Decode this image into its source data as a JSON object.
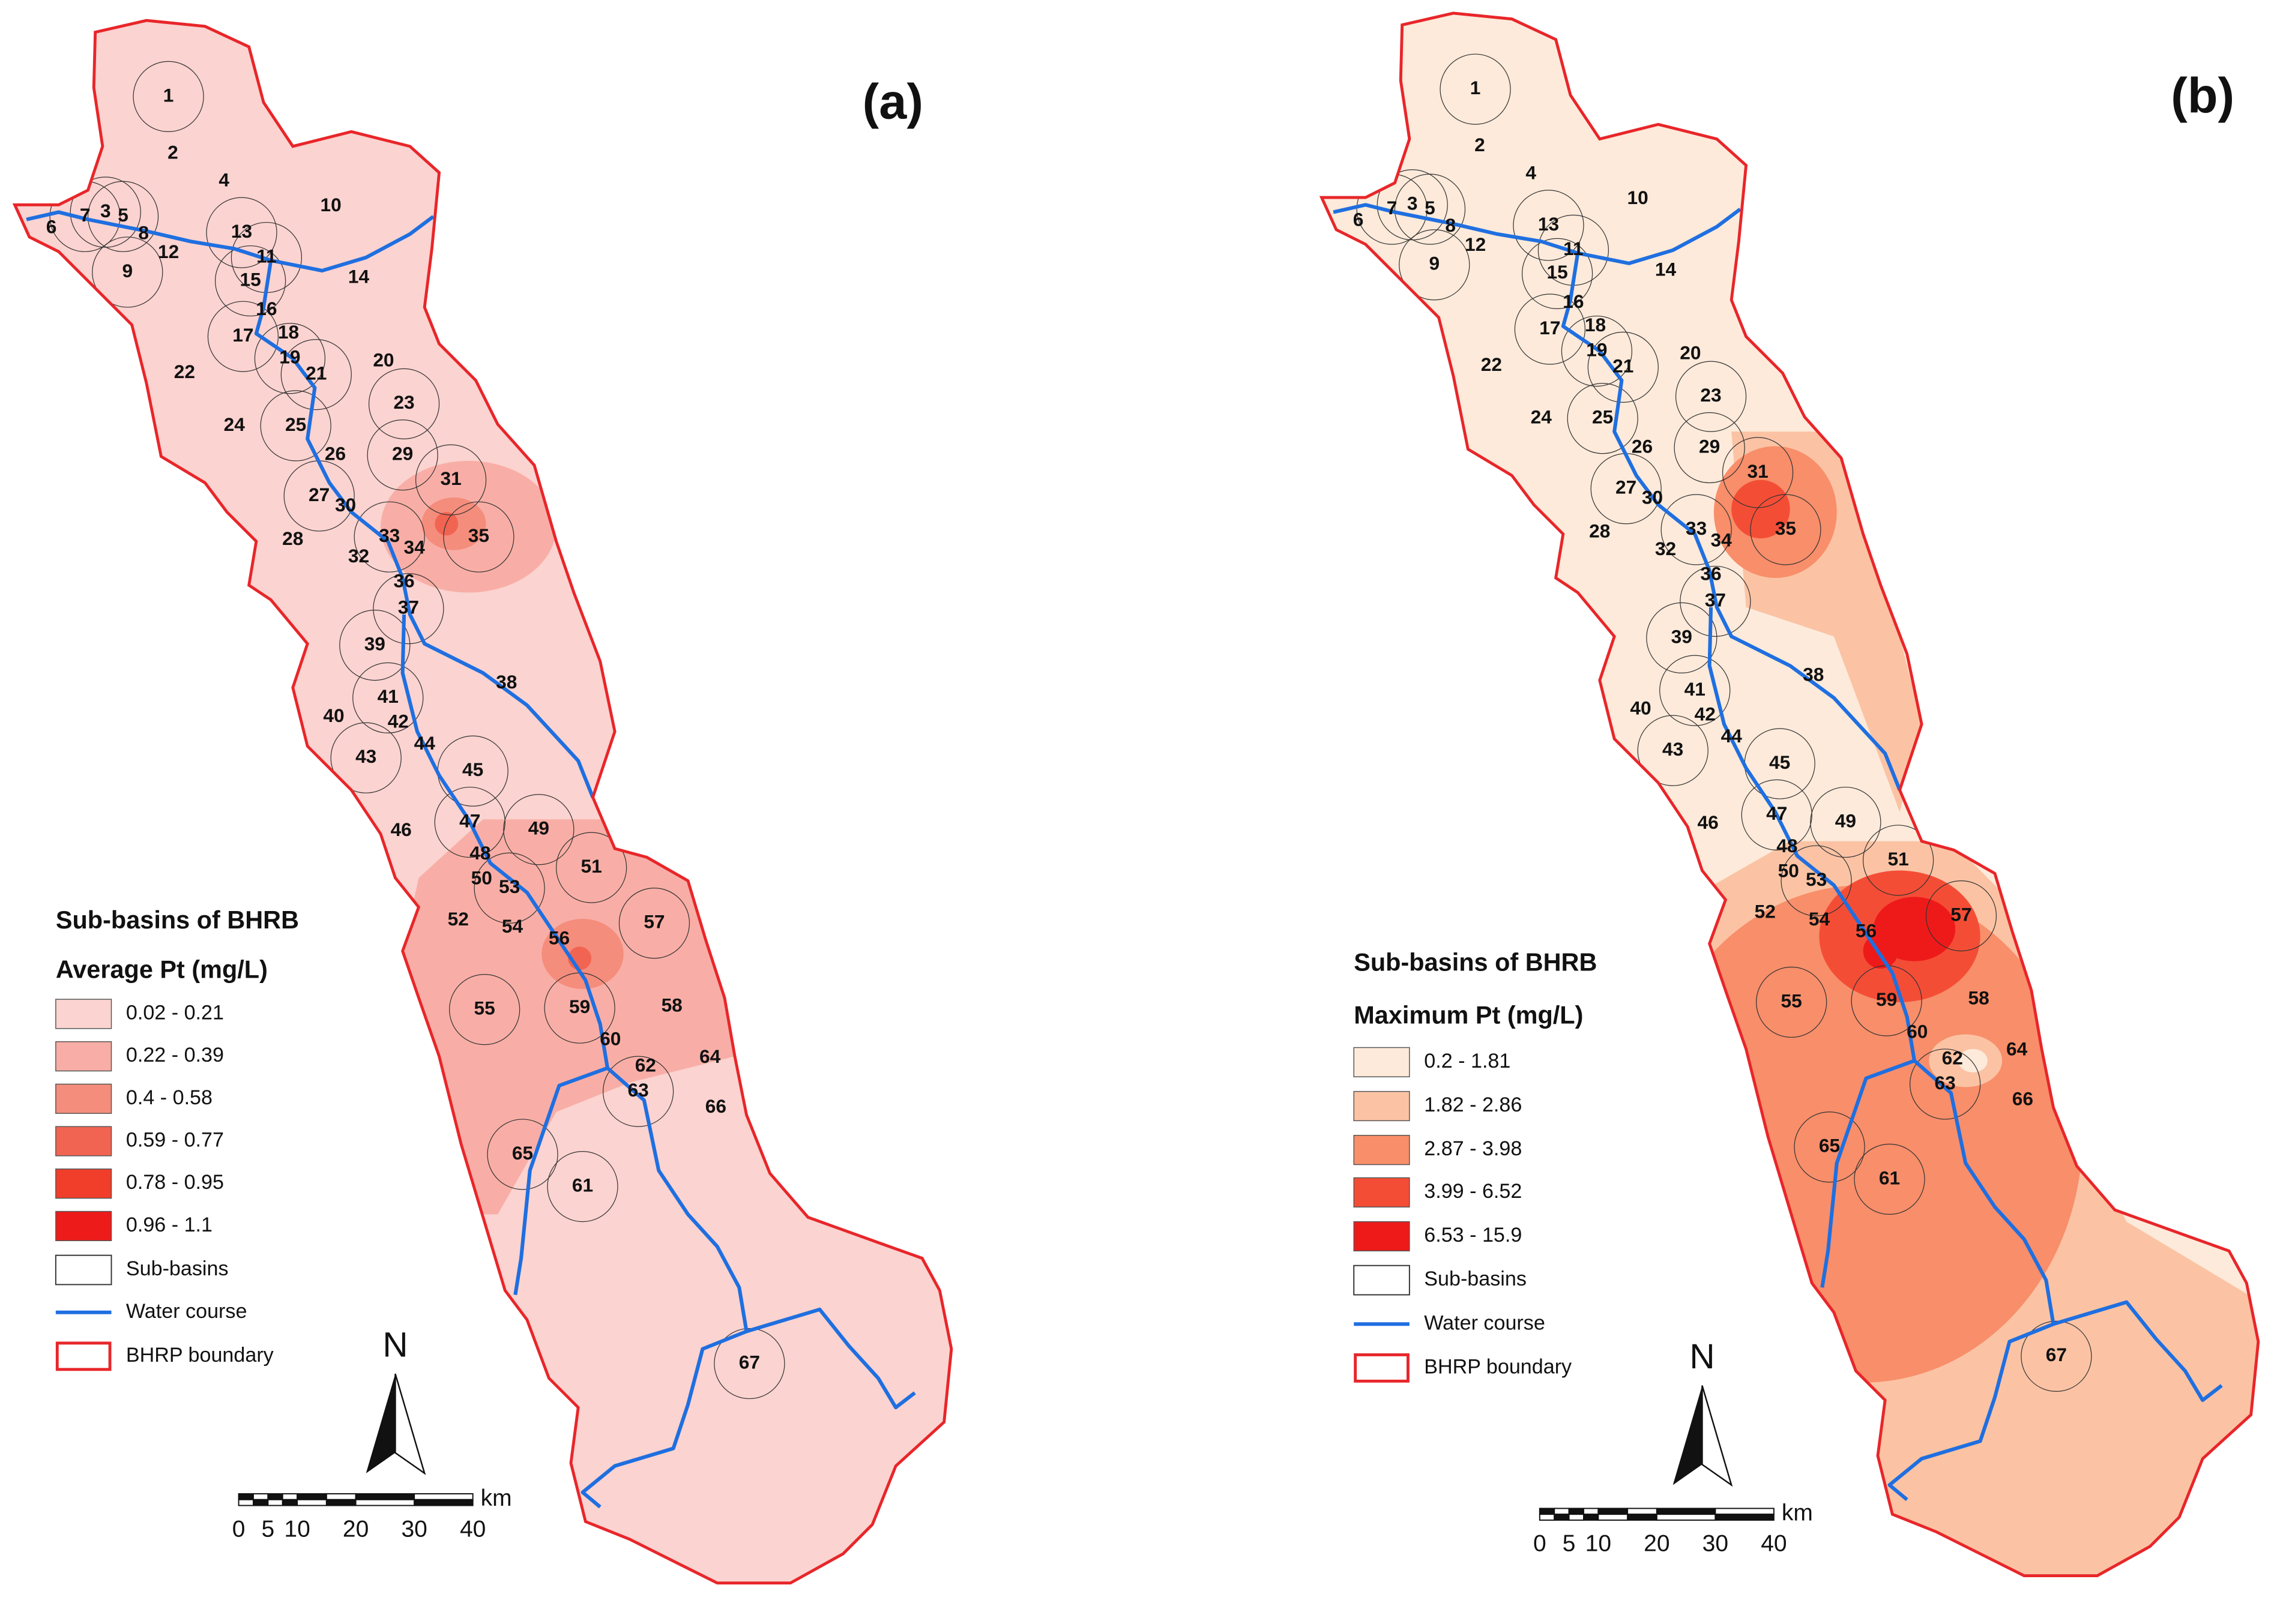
{
  "panels": [
    {
      "label": "(a)",
      "legend": {
        "title": "Sub-basins of BHRB",
        "subtitle": "Average Pt (mg/L)",
        "classes": [
          {
            "label": "0.02 - 0.21",
            "color": "#fbd3d0"
          },
          {
            "label": "0.22 - 0.39",
            "color": "#f8aea6"
          },
          {
            "label": "0.4 - 0.58",
            "color": "#f58d7c"
          },
          {
            "label": "0.59 - 0.77",
            "color": "#f26452"
          },
          {
            "label": "0.78 - 0.95",
            "color": "#f03e2b"
          },
          {
            "label": "0.96 - 1.1",
            "color": "#ee1b1b"
          }
        ],
        "items": [
          "Sub-basins",
          "Water course",
          "BHRP boundary"
        ]
      },
      "north": "N",
      "scale": {
        "ticks": [
          0,
          5,
          10,
          20,
          30,
          40
        ],
        "unit": "km"
      },
      "subbasins": [
        "1",
        "2",
        "3",
        "4",
        "5",
        "6",
        "7",
        "8",
        "9",
        "10",
        "11",
        "12",
        "13",
        "14",
        "15",
        "16",
        "17",
        "18",
        "19",
        "20",
        "21",
        "22",
        "23",
        "24",
        "25",
        "26",
        "27",
        "28",
        "29",
        "30",
        "31",
        "32",
        "33",
        "34",
        "35",
        "36",
        "37",
        "38",
        "39",
        "40",
        "41",
        "42",
        "43",
        "44",
        "45",
        "46",
        "47",
        "48",
        "49",
        "50",
        "51",
        "52",
        "53",
        "54",
        "55",
        "56",
        "57",
        "58",
        "59",
        "60",
        "61",
        "62",
        "63",
        "64",
        "65",
        "66",
        "67"
      ]
    },
    {
      "label": "(b)",
      "legend": {
        "title": "Sub-basins of BHRB",
        "subtitle": "Maximum Pt (mg/L)",
        "classes": [
          {
            "label": "0.2 - 1.81",
            "color": "#fdeada"
          },
          {
            "label": "1.82 - 2.86",
            "color": "#fbc3a4"
          },
          {
            "label": "2.87 - 3.98",
            "color": "#f88e6a"
          },
          {
            "label": "3.99 - 6.52",
            "color": "#f44d36"
          },
          {
            "label": "6.53 - 15.9",
            "color": "#ee1a1a"
          }
        ],
        "items": [
          "Sub-basins",
          "Water course",
          "BHRP boundary"
        ]
      },
      "north": "N",
      "scale": {
        "ticks": [
          0,
          5,
          10,
          20,
          30,
          40
        ],
        "unit": "km"
      },
      "subbasins": [
        "1",
        "2",
        "3",
        "4",
        "5",
        "6",
        "7",
        "8",
        "9",
        "10",
        "11",
        "12",
        "13",
        "14",
        "15",
        "16",
        "17",
        "18",
        "19",
        "20",
        "21",
        "22",
        "23",
        "24",
        "25",
        "26",
        "27",
        "28",
        "29",
        "30",
        "31",
        "32",
        "33",
        "34",
        "35",
        "36",
        "37",
        "38",
        "39",
        "40",
        "41",
        "42",
        "43",
        "44",
        "45",
        "46",
        "47",
        "48",
        "49",
        "50",
        "51",
        "52",
        "53",
        "54",
        "55",
        "56",
        "57",
        "58",
        "59",
        "60",
        "61",
        "62",
        "63",
        "64",
        "65",
        "66",
        "67"
      ]
    }
  ]
}
